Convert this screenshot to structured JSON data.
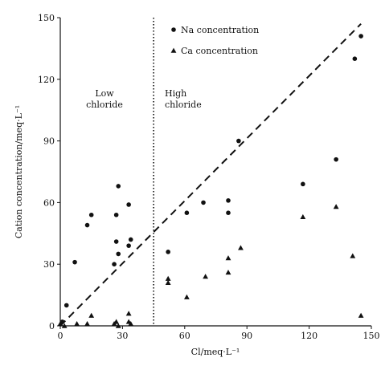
{
  "chart_data": {
    "type": "scatter",
    "xlabel": "Cl/meq·L⁻¹",
    "ylabel": "Cation concentration/meq·L⁻¹",
    "xlim": [
      0,
      150
    ],
    "ylim": [
      0,
      150
    ],
    "xticks": [
      "0",
      "30",
      "60",
      "90",
      "120",
      "150"
    ],
    "yticks": [
      "0",
      "30",
      "60",
      "90",
      "120",
      "150"
    ],
    "grid": false,
    "legend_position": "top-right",
    "threshold_x": 45,
    "reference_line": {
      "style": "dashed",
      "from": [
        0,
        0
      ],
      "to": [
        145,
        147
      ]
    },
    "region_labels": [
      {
        "id": "low",
        "lines": [
          "Low",
          "chloride"
        ]
      },
      {
        "id": "high",
        "lines": [
          "High",
          "chloride"
        ]
      }
    ],
    "series": [
      {
        "name": "Na concentration",
        "marker": "circle",
        "points": [
          [
            1,
            2
          ],
          [
            3,
            10
          ],
          [
            7,
            31
          ],
          [
            13,
            49
          ],
          [
            15,
            54
          ],
          [
            26,
            30
          ],
          [
            27,
            41
          ],
          [
            27,
            54
          ],
          [
            28,
            68
          ],
          [
            28,
            35
          ],
          [
            33,
            59
          ],
          [
            33,
            39
          ],
          [
            34,
            42
          ],
          [
            52,
            36
          ],
          [
            61,
            55
          ],
          [
            69,
            60
          ],
          [
            81,
            61
          ],
          [
            81,
            55
          ],
          [
            86,
            90
          ],
          [
            117,
            69
          ],
          [
            133,
            81
          ],
          [
            142,
            130
          ],
          [
            145,
            141
          ]
        ]
      },
      {
        "name": "Ca concentration",
        "marker": "triangle",
        "points": [
          [
            0,
            1
          ],
          [
            2,
            0
          ],
          [
            8,
            1
          ],
          [
            13,
            1
          ],
          [
            15,
            5
          ],
          [
            26,
            1
          ],
          [
            27,
            2
          ],
          [
            28,
            0
          ],
          [
            33,
            6
          ],
          [
            33,
            2
          ],
          [
            34,
            1
          ],
          [
            52,
            21
          ],
          [
            52,
            23
          ],
          [
            61,
            14
          ],
          [
            70,
            24
          ],
          [
            81,
            33
          ],
          [
            81,
            26
          ],
          [
            87,
            38
          ],
          [
            117,
            53
          ],
          [
            133,
            58
          ],
          [
            141,
            34
          ],
          [
            145,
            5
          ]
        ]
      }
    ]
  }
}
